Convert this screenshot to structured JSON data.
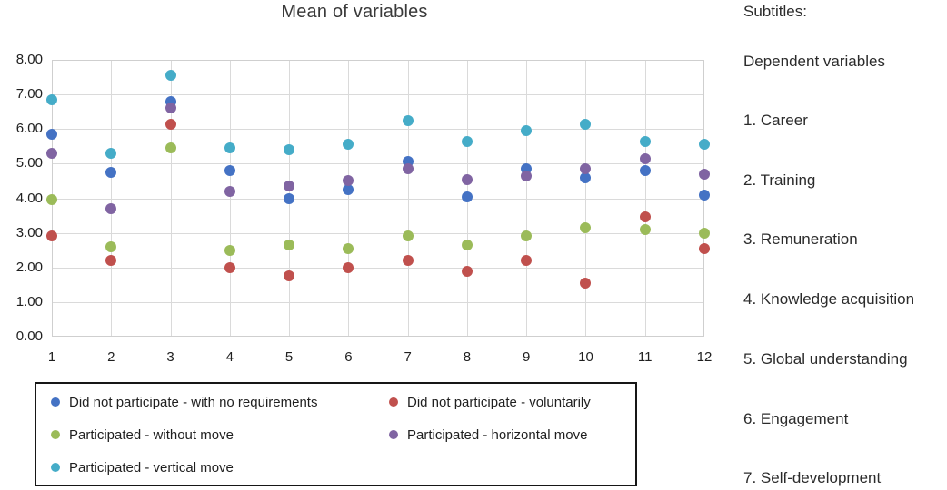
{
  "chart_data": {
    "type": "scatter",
    "title": "Mean of variables",
    "x": [
      1,
      2,
      3,
      4,
      5,
      6,
      7,
      8,
      9,
      10,
      11,
      12
    ],
    "x_tick_labels": [
      "1",
      "2",
      "3",
      "4",
      "5",
      "6",
      "7",
      "8",
      "9",
      "10",
      "11",
      "12"
    ],
    "y_tick_labels": [
      "8.00",
      "7.00",
      "6.00",
      "5.00",
      "4.00",
      "3.00",
      "2.00",
      "1.00",
      "0.00"
    ],
    "ylim": [
      0,
      8
    ],
    "y_tick_step": 1,
    "grid": true,
    "legend_position": "bottom-left",
    "series": [
      {
        "name": "Did not participate - with no requirements",
        "color": "#4472c4",
        "values": [
          5.85,
          4.75,
          6.8,
          4.8,
          4.0,
          4.25,
          5.05,
          4.05,
          4.85,
          4.6,
          4.8,
          4.1
        ]
      },
      {
        "name": "Did not participate - voluntarily",
        "color": "#c0504d",
        "values": [
          2.9,
          2.2,
          6.15,
          2.0,
          1.75,
          2.0,
          2.2,
          1.9,
          2.2,
          1.55,
          3.45,
          2.55
        ]
      },
      {
        "name": "Participated - without move",
        "color": "#9bbb59",
        "values": [
          3.95,
          2.6,
          5.45,
          2.5,
          2.65,
          2.55,
          2.9,
          2.65,
          2.9,
          3.15,
          3.1,
          3.0
        ]
      },
      {
        "name": "Participated - horizontal move",
        "color": "#8064a2",
        "values": [
          5.3,
          3.7,
          6.6,
          4.2,
          4.35,
          4.5,
          4.85,
          4.55,
          4.65,
          4.85,
          5.15,
          4.7
        ]
      },
      {
        "name": "Participated - vertical move",
        "color": "#45acc8",
        "values": [
          6.85,
          5.3,
          7.55,
          5.45,
          5.4,
          5.55,
          6.25,
          5.65,
          5.95,
          6.15,
          5.65,
          5.55
        ]
      }
    ]
  },
  "sidebar": {
    "heading": "Subtitles:",
    "subheading": "Dependent variables",
    "items": [
      "1. Career",
      "2. Training",
      "3. Remuneration",
      "4. Knowledge acquisition",
      "5. Global understanding",
      "6. Engagement",
      "7. Self-development"
    ]
  }
}
